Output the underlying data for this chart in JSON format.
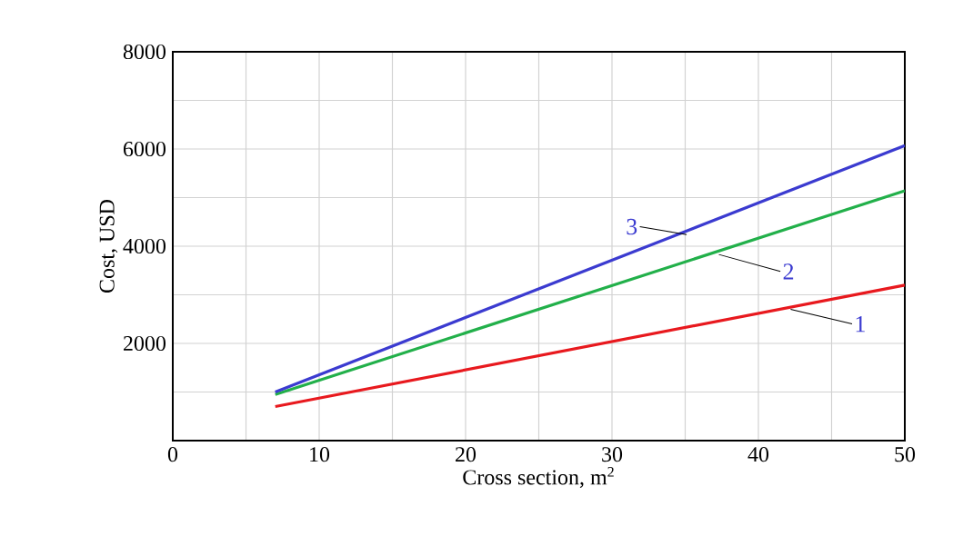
{
  "chart_data": {
    "type": "line",
    "xlabel": "Cross section, m$^{2}$",
    "ylabel": "Cost, USD",
    "series": [
      {
        "values": [
          700,
          3200
        ],
        "color": "#e8191e"
      },
      {
        "values": [
          950,
          5140
        ],
        "color": "#22b04a"
      },
      {
        "values": [
          1000,
          6070
        ],
        "color": "#3b3bd0"
      }
    ],
    "x": [
      7,
      50
    ],
    "annotations": [
      {
        "text": "1",
        "x": 42.2,
        "y": 2700
      },
      {
        "text": "2",
        "x": 37.3,
        "y": 3830
      },
      {
        "text": "3",
        "x": 35.1,
        "y": 4240
      }
    ],
    "xlim": [
      0,
      50
    ],
    "ylim": [
      0,
      8000
    ],
    "xticks": [
      0,
      {
        "value": 5,
        "label": null
      },
      10,
      {
        "value": 15,
        "label": null
      },
      20,
      {
        "value": 25,
        "label": null
      },
      30,
      {
        "value": 35,
        "label": null
      },
      40,
      {
        "value": 45,
        "label": null
      },
      50
    ],
    "yticks": [
      {
        "value": 0,
        "label": null
      },
      {
        "value": 1000,
        "label": null
      },
      2000,
      {
        "value": 3000,
        "label": null
      },
      4000,
      {
        "value": 5000,
        "label": null
      },
      6000,
      {
        "value": 7000,
        "label": null
      },
      8000
    ],
    "grid": true
  }
}
